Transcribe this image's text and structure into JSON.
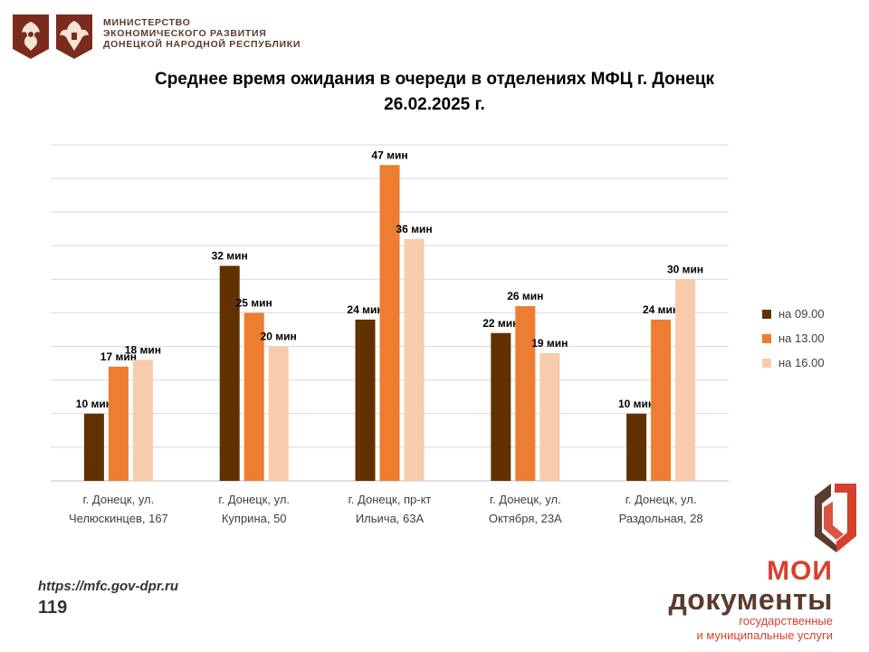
{
  "header": {
    "ministry_lines": [
      "МИНИСТЕРСТВО",
      "ЭКОНОМИЧЕСКОГО РАЗВИТИЯ",
      "ДОНЕЦКОЙ НАРОДНОЙ РЕСПУБЛИКИ"
    ]
  },
  "chart_data": {
    "type": "bar",
    "title_line1": "Среднее время ожидания в очереди в отделениях МФЦ г. Донецк",
    "title_line2": "26.02.2025 г.",
    "categories": [
      [
        "г. Донецк, ул.",
        "Челюскинцев, 167"
      ],
      [
        "г. Донецк, ул.",
        "Куприна, 50"
      ],
      [
        "г. Донецк, пр-кт",
        "Ильича, 63А"
      ],
      [
        "г. Донецк, ул.",
        "Октября, 23А"
      ],
      [
        "г. Донецк, ул.",
        "Раздольная, 28"
      ]
    ],
    "series": [
      {
        "name": "на 09.00",
        "color": "#613200",
        "values": [
          10,
          32,
          24,
          22,
          10
        ]
      },
      {
        "name": "на 13.00",
        "color": "#ed7d31",
        "values": [
          17,
          25,
          47,
          26,
          24
        ]
      },
      {
        "name": "на 16.00",
        "color": "#f8cbad",
        "values": [
          18,
          20,
          36,
          19,
          30
        ]
      }
    ],
    "value_suffix": " мин",
    "ylim": [
      0,
      50
    ],
    "grid": true,
    "legend_position": "right"
  },
  "footer": {
    "url": "https://mfc.gov-dpr.ru",
    "page_number": "119"
  },
  "brand": {
    "line1": "МОИ",
    "line2": "документы",
    "line3": "государственные",
    "line4": "и муниципальные услуги"
  }
}
